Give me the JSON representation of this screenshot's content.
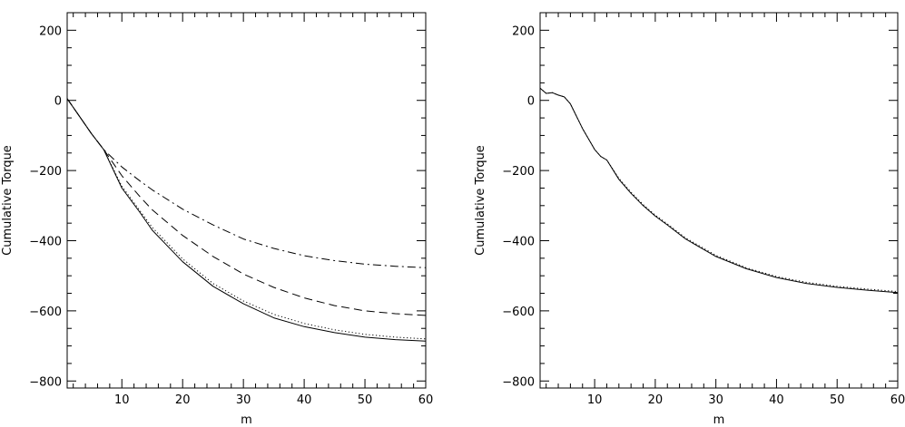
{
  "chart_data": [
    {
      "type": "line",
      "xlabel": "m",
      "ylabel": "Cumulative Torque",
      "xlim": [
        1,
        60
      ],
      "ylim": [
        -820,
        250
      ],
      "xticks": [
        10,
        20,
        30,
        40,
        50,
        60
      ],
      "yticks": [
        -800,
        -600,
        -400,
        -200,
        0,
        200
      ],
      "xtick_labels": [
        "10",
        "20",
        "30",
        "40",
        "50",
        "60"
      ],
      "ytick_labels": [
        "−800",
        "−600",
        "−400",
        "−200",
        "0",
        "200"
      ],
      "grid": false,
      "series": [
        {
          "style": "solid",
          "color": "#000000",
          "x": [
            1,
            3,
            5,
            7,
            10,
            13,
            15,
            20,
            25,
            30,
            35,
            40,
            45,
            50,
            55,
            60
          ],
          "y": [
            5,
            -45,
            -95,
            -140,
            -250,
            -320,
            -370,
            -460,
            -530,
            -580,
            -620,
            -645,
            -662,
            -675,
            -682,
            -686
          ]
        },
        {
          "style": "dotted",
          "color": "#000000",
          "x": [
            1,
            3,
            5,
            7,
            10,
            13,
            15,
            20,
            25,
            30,
            35,
            40,
            45,
            50,
            55,
            60
          ],
          "y": [
            5,
            -45,
            -95,
            -140,
            -245,
            -315,
            -362,
            -452,
            -522,
            -572,
            -610,
            -636,
            -654,
            -667,
            -675,
            -680
          ]
        },
        {
          "style": "dashed",
          "color": "#000000",
          "x": [
            1,
            3,
            5,
            7,
            10,
            13,
            15,
            20,
            25,
            30,
            35,
            40,
            45,
            50,
            55,
            60
          ],
          "y": [
            5,
            -45,
            -95,
            -140,
            -215,
            -275,
            -312,
            -385,
            -445,
            -495,
            -533,
            -563,
            -585,
            -600,
            -608,
            -613
          ]
        },
        {
          "style": "dashdot",
          "color": "#000000",
          "x": [
            1,
            3,
            5,
            7,
            10,
            13,
            15,
            20,
            25,
            30,
            35,
            40,
            45,
            50,
            55,
            60
          ],
          "y": [
            5,
            -45,
            -95,
            -140,
            -190,
            -230,
            -255,
            -310,
            -355,
            -395,
            -422,
            -443,
            -457,
            -467,
            -473,
            -477
          ]
        }
      ]
    },
    {
      "type": "line",
      "xlabel": "m",
      "ylabel": "Cumulative Torque",
      "xlim": [
        1,
        60
      ],
      "ylim": [
        -820,
        250
      ],
      "xticks": [
        10,
        20,
        30,
        40,
        50,
        60
      ],
      "yticks": [
        -800,
        -600,
        -400,
        -200,
        0,
        200
      ],
      "xtick_labels": [
        "10",
        "20",
        "30",
        "40",
        "50",
        "60"
      ],
      "ytick_labels": [
        "−800",
        "−600",
        "−400",
        "−200",
        "0",
        "200"
      ],
      "grid": false,
      "series": [
        {
          "style": "solid",
          "color": "#000000",
          "x": [
            1,
            2,
            3,
            4,
            5,
            6,
            8,
            10,
            11,
            12,
            14,
            16,
            18,
            20,
            22,
            25,
            28,
            30,
            35,
            40,
            45,
            50,
            55,
            60
          ],
          "y": [
            35,
            20,
            22,
            15,
            10,
            -10,
            -80,
            -140,
            -160,
            -170,
            -225,
            -265,
            -300,
            -330,
            -355,
            -395,
            -425,
            -445,
            -480,
            -505,
            -522,
            -533,
            -541,
            -548
          ]
        },
        {
          "style": "dotted",
          "color": "#000000",
          "x": [
            1,
            2,
            3,
            4,
            5,
            6,
            8,
            10,
            11,
            12,
            14,
            16,
            18,
            20,
            22,
            25,
            28,
            30,
            35,
            40,
            45,
            50,
            55,
            60
          ],
          "y": [
            35,
            20,
            22,
            15,
            10,
            -10,
            -80,
            -140,
            -160,
            -170,
            -222,
            -262,
            -297,
            -327,
            -352,
            -392,
            -422,
            -442,
            -477,
            -502,
            -519,
            -530,
            -538,
            -545
          ]
        }
      ]
    }
  ]
}
